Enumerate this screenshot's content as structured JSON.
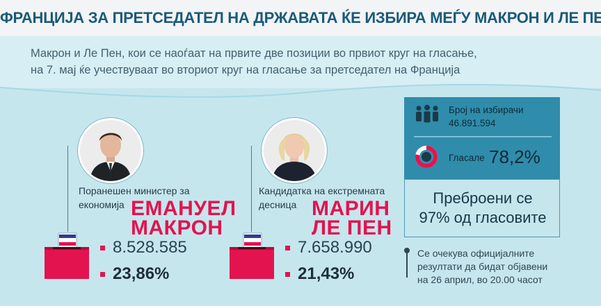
{
  "header": {
    "title": "ФРАНЦИЈА ЗА ПРЕТСЕДАТЕЛ НА ДРЖАВАТА ЌЕ ИЗБИРА МЕЃУ МАКРОН И ЛЕ ПЕН",
    "subtitle_line1": "Макрон и Ле Пен, кои се наоѓаат на првите две позиции во првиот круг на гласање,",
    "subtitle_line2": "на 7. мај ќе учествуваат во вториот круг на гласање за претседател на Франција"
  },
  "candidates": [
    {
      "role_line1": "Поранешен министер за",
      "role_line2": "економија",
      "first_name": "ЕМАНУЕЛ",
      "last_name": "МАКРОН",
      "votes": "8.528.585",
      "percent": "23,86%",
      "percent_value": 23.86
    },
    {
      "role_line1": "Кандидатка на екстремната",
      "role_line2": "десница",
      "first_name": "МАРИН",
      "last_name": "ЛЕ ПЕН",
      "votes": "7.658.990",
      "percent": "21,43%",
      "percent_value": 21.43
    }
  ],
  "stats": {
    "voters_label": "Број на избирачи",
    "voters_value": "46.891.594",
    "turnout_label": "Гласале",
    "turnout_value": "78,2%",
    "turnout_fraction": 0.782,
    "counted_line1": "Преброени се",
    "counted_line2": "97% од гласовите",
    "note_line1": "Се очекува официјалните",
    "note_line2": "резултати да бидат објавени",
    "note_line3": "на 26 април, во 20.00 часот"
  },
  "colors": {
    "accent": "#e3134f",
    "panel": "#2f8cab",
    "background": "#c6e6ee",
    "title_text": "#1a5a78",
    "ballot_flag_blue": "#2a3f8f"
  },
  "icons": [
    "people-icon",
    "donut-icon",
    "ballot-box-icon",
    "bullet-icon"
  ]
}
